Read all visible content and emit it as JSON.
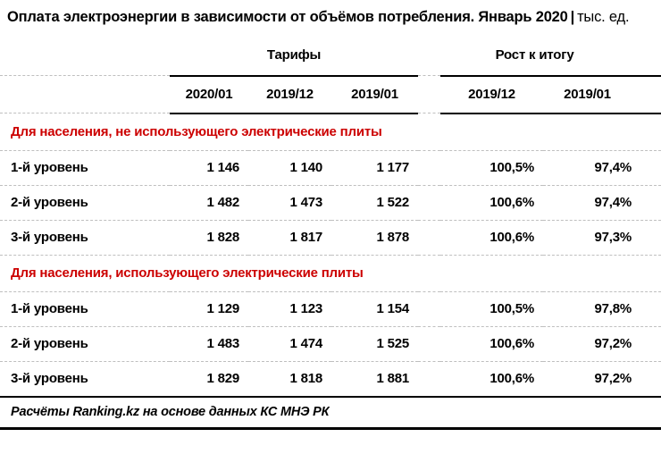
{
  "header": {
    "title_main": "Оплата электроэнергии в зависимости от объёмов потребления. Январь 2020",
    "title_separator": "|",
    "title_unit": "тыс. ед."
  },
  "colors": {
    "section_red": "#cc0000",
    "dashed_line": "#bfbfbf",
    "solid_line": "#000000"
  },
  "chart_data": {
    "type": "table",
    "title": "Оплата электроэнергии в зависимости от объёмов потребления. Январь 2020 | тыс. ед.",
    "group_headers": [
      "Тарифы",
      "Рост к итогу"
    ],
    "columns": [
      "2020/01",
      "2019/12",
      "2019/01",
      "2019/12",
      "2019/01"
    ],
    "sections": [
      {
        "header": "Для населения, не использующего электрические плиты",
        "rows": [
          {
            "label": "1-й уровень",
            "cells": [
              "1 146",
              "1 140",
              "1 177",
              "100,5%",
              "97,4%"
            ],
            "tariffs_numeric": [
              1146,
              1140,
              1177
            ],
            "growth_pct_numeric": [
              100.5,
              97.4
            ]
          },
          {
            "label": "2-й уровень",
            "cells": [
              "1 482",
              "1 473",
              "1 522",
              "100,6%",
              "97,4%"
            ],
            "tariffs_numeric": [
              1482,
              1473,
              1522
            ],
            "growth_pct_numeric": [
              100.6,
              97.4
            ]
          },
          {
            "label": "3-й уровень",
            "cells": [
              "1 828",
              "1 817",
              "1 878",
              "100,6%",
              "97,3%"
            ],
            "tariffs_numeric": [
              1828,
              1817,
              1878
            ],
            "growth_pct_numeric": [
              100.6,
              97.3
            ]
          }
        ]
      },
      {
        "header": "Для населения, использующего электрические плиты",
        "rows": [
          {
            "label": "1-й уровень",
            "cells": [
              "1 129",
              "1 123",
              "1 154",
              "100,5%",
              "97,8%"
            ],
            "tariffs_numeric": [
              1129,
              1123,
              1154
            ],
            "growth_pct_numeric": [
              100.5,
              97.8
            ]
          },
          {
            "label": "2-й уровень",
            "cells": [
              "1 483",
              "1 474",
              "1 525",
              "100,6%",
              "97,2%"
            ],
            "tariffs_numeric": [
              1483,
              1474,
              1525
            ],
            "growth_pct_numeric": [
              100.6,
              97.2
            ]
          },
          {
            "label": "3-й уровень",
            "cells": [
              "1 829",
              "1 818",
              "1 881",
              "100,6%",
              "97,2%"
            ],
            "tariffs_numeric": [
              1829,
              1818,
              1881
            ],
            "growth_pct_numeric": [
              100.6,
              97.2
            ]
          }
        ]
      }
    ],
    "source": "Расчёты Ranking.kz на основе данных КС МНЭ РК"
  }
}
